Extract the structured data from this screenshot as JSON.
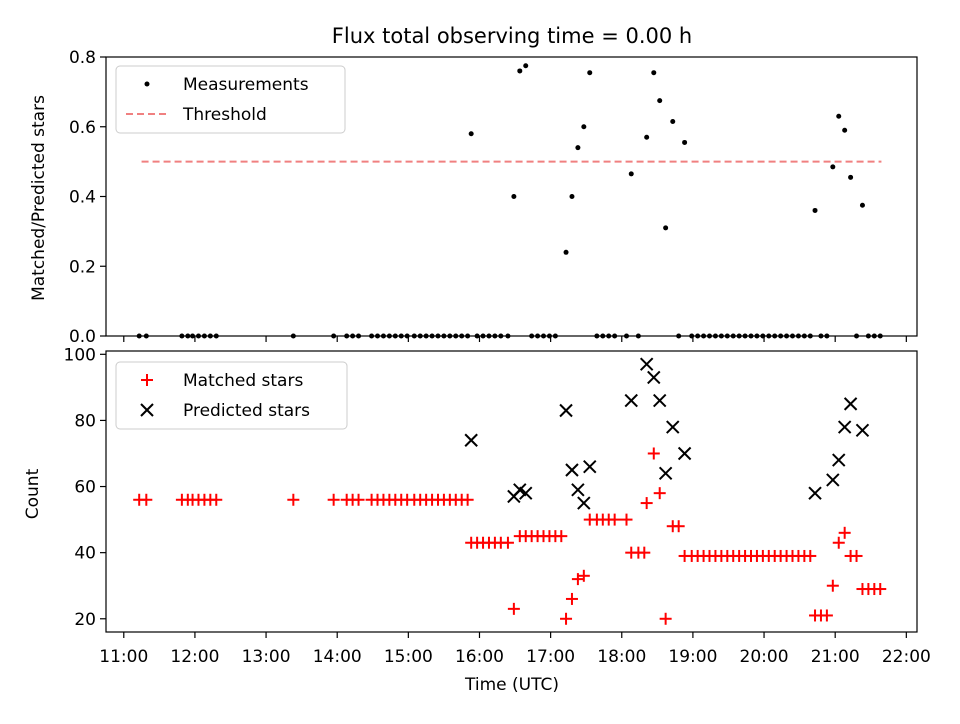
{
  "chart_data": [
    {
      "type": "scatter",
      "title": "Flux total observing time = 0.00 h",
      "xlabel": "",
      "ylabel": "Matched/Predicted stars",
      "ylim": [
        0,
        0.8
      ],
      "yticks": [
        "0.0",
        "0.2",
        "0.4",
        "0.6",
        "0.8"
      ],
      "legend": {
        "position": "upper-left",
        "entries": [
          "Measurements",
          "Threshold"
        ]
      },
      "threshold": {
        "name": "Threshold",
        "value": 0.5,
        "x_start": "11:15",
        "x_end": "21:39",
        "color": "#f08080",
        "style": "dashed"
      },
      "series": [
        {
          "name": "Measurements",
          "marker": "dot",
          "color": "#000000",
          "points": [
            [
              "11:13",
              0.0
            ],
            [
              "11:19",
              0.0
            ],
            [
              "11:49",
              0.0
            ],
            [
              "11:54",
              0.0
            ],
            [
              "11:58",
              0.0
            ],
            [
              "12:03",
              0.0
            ],
            [
              "12:08",
              0.0
            ],
            [
              "12:13",
              0.0
            ],
            [
              "12:18",
              0.0
            ],
            [
              "13:23",
              0.0
            ],
            [
              "13:57",
              0.0
            ],
            [
              "14:08",
              0.0
            ],
            [
              "14:13",
              0.0
            ],
            [
              "14:18",
              0.0
            ],
            [
              "14:29",
              0.0
            ],
            [
              "14:34",
              0.0
            ],
            [
              "14:39",
              0.0
            ],
            [
              "14:44",
              0.0
            ],
            [
              "14:49",
              0.0
            ],
            [
              "14:54",
              0.0
            ],
            [
              "14:59",
              0.0
            ],
            [
              "15:05",
              0.0
            ],
            [
              "15:10",
              0.0
            ],
            [
              "15:15",
              0.0
            ],
            [
              "15:20",
              0.0
            ],
            [
              "15:25",
              0.0
            ],
            [
              "15:30",
              0.0
            ],
            [
              "15:35",
              0.0
            ],
            [
              "15:40",
              0.0
            ],
            [
              "15:45",
              0.0
            ],
            [
              "15:50",
              0.0
            ],
            [
              "15:53",
              0.58
            ],
            [
              "15:58",
              0.0
            ],
            [
              "16:03",
              0.0
            ],
            [
              "16:08",
              0.0
            ],
            [
              "16:13",
              0.0
            ],
            [
              "16:18",
              0.0
            ],
            [
              "16:24",
              0.0
            ],
            [
              "16:29",
              0.4
            ],
            [
              "16:34",
              0.76
            ],
            [
              "16:39",
              0.775
            ],
            [
              "16:44",
              0.0
            ],
            [
              "16:49",
              0.0
            ],
            [
              "16:54",
              0.0
            ],
            [
              "16:59",
              0.0
            ],
            [
              "17:04",
              0.0
            ],
            [
              "17:13",
              0.24
            ],
            [
              "17:18",
              0.4
            ],
            [
              "17:23",
              0.54
            ],
            [
              "17:28",
              0.6
            ],
            [
              "17:33",
              0.755
            ],
            [
              "17:39",
              0.0
            ],
            [
              "17:44",
              0.0
            ],
            [
              "17:49",
              0.0
            ],
            [
              "17:54",
              0.0
            ],
            [
              "18:04",
              0.0
            ],
            [
              "18:08",
              0.465
            ],
            [
              "18:14",
              0.0
            ],
            [
              "18:21",
              0.57
            ],
            [
              "18:27",
              0.755
            ],
            [
              "18:32",
              0.675
            ],
            [
              "18:37",
              0.31
            ],
            [
              "18:43",
              0.615
            ],
            [
              "18:48",
              0.0
            ],
            [
              "18:53",
              0.555
            ],
            [
              "18:59",
              0.0
            ],
            [
              "19:04",
              0.0
            ],
            [
              "19:09",
              0.0
            ],
            [
              "19:14",
              0.0
            ],
            [
              "19:19",
              0.0
            ],
            [
              "19:24",
              0.0
            ],
            [
              "19:29",
              0.0
            ],
            [
              "19:34",
              0.0
            ],
            [
              "19:39",
              0.0
            ],
            [
              "19:44",
              0.0
            ],
            [
              "19:49",
              0.0
            ],
            [
              "19:54",
              0.0
            ],
            [
              "19:59",
              0.0
            ],
            [
              "20:04",
              0.0
            ],
            [
              "20:09",
              0.0
            ],
            [
              "20:14",
              0.0
            ],
            [
              "20:19",
              0.0
            ],
            [
              "20:24",
              0.0
            ],
            [
              "20:29",
              0.0
            ],
            [
              "20:34",
              0.0
            ],
            [
              "20:39",
              0.0
            ],
            [
              "20:43",
              0.36
            ],
            [
              "20:48",
              0.0
            ],
            [
              "20:53",
              0.0
            ],
            [
              "20:58",
              0.485
            ],
            [
              "21:03",
              0.63
            ],
            [
              "21:08",
              0.59
            ],
            [
              "21:13",
              0.455
            ],
            [
              "21:18",
              0.0
            ],
            [
              "21:23",
              0.375
            ],
            [
              "21:28",
              0.0
            ],
            [
              "21:33",
              0.0
            ],
            [
              "21:38",
              0.0
            ]
          ]
        }
      ]
    },
    {
      "type": "scatter",
      "title": "",
      "xlabel": "Time (UTC)",
      "ylabel": "Count",
      "ylim": [
        16,
        101
      ],
      "yticks": [
        "20",
        "40",
        "60",
        "80",
        "100"
      ],
      "xlim": [
        "10:45",
        "22:09"
      ],
      "xticks": [
        "11:00",
        "12:00",
        "13:00",
        "14:00",
        "15:00",
        "16:00",
        "17:00",
        "18:00",
        "19:00",
        "20:00",
        "21:00",
        "22:00"
      ],
      "legend": {
        "position": "upper-left",
        "entries": [
          "Matched stars",
          "Predicted stars"
        ]
      },
      "series": [
        {
          "name": "Matched stars",
          "marker": "plus",
          "color": "#ff0000",
          "points": [
            [
              "11:13",
              56
            ],
            [
              "11:19",
              56
            ],
            [
              "11:49",
              56
            ],
            [
              "11:54",
              56
            ],
            [
              "11:58",
              56
            ],
            [
              "12:03",
              56
            ],
            [
              "12:08",
              56
            ],
            [
              "12:13",
              56
            ],
            [
              "12:18",
              56
            ],
            [
              "13:23",
              56
            ],
            [
              "13:57",
              56
            ],
            [
              "14:08",
              56
            ],
            [
              "14:13",
              56
            ],
            [
              "14:18",
              56
            ],
            [
              "14:29",
              56
            ],
            [
              "14:34",
              56
            ],
            [
              "14:39",
              56
            ],
            [
              "14:44",
              56
            ],
            [
              "14:49",
              56
            ],
            [
              "14:54",
              56
            ],
            [
              "14:59",
              56
            ],
            [
              "15:05",
              56
            ],
            [
              "15:10",
              56
            ],
            [
              "15:15",
              56
            ],
            [
              "15:20",
              56
            ],
            [
              "15:25",
              56
            ],
            [
              "15:30",
              56
            ],
            [
              "15:35",
              56
            ],
            [
              "15:40",
              56
            ],
            [
              "15:45",
              56
            ],
            [
              "15:50",
              56
            ],
            [
              "15:53",
              43
            ],
            [
              "15:58",
              43
            ],
            [
              "16:03",
              43
            ],
            [
              "16:08",
              43
            ],
            [
              "16:13",
              43
            ],
            [
              "16:18",
              43
            ],
            [
              "16:24",
              43
            ],
            [
              "16:29",
              23
            ],
            [
              "16:34",
              45
            ],
            [
              "16:39",
              45
            ],
            [
              "16:44",
              45
            ],
            [
              "16:49",
              45
            ],
            [
              "16:54",
              45
            ],
            [
              "16:59",
              45
            ],
            [
              "17:04",
              45
            ],
            [
              "17:09",
              45
            ],
            [
              "17:13",
              20
            ],
            [
              "17:18",
              26
            ],
            [
              "17:23",
              32
            ],
            [
              "17:28",
              33
            ],
            [
              "17:33",
              50
            ],
            [
              "17:39",
              50
            ],
            [
              "17:44",
              50
            ],
            [
              "17:49",
              50
            ],
            [
              "17:54",
              50
            ],
            [
              "18:04",
              50
            ],
            [
              "18:08",
              40
            ],
            [
              "18:14",
              40
            ],
            [
              "18:19",
              40
            ],
            [
              "18:21",
              55
            ],
            [
              "18:27",
              70
            ],
            [
              "18:32",
              58
            ],
            [
              "18:37",
              20
            ],
            [
              "18:43",
              48
            ],
            [
              "18:48",
              48
            ],
            [
              "18:53",
              39
            ],
            [
              "18:59",
              39
            ],
            [
              "19:04",
              39
            ],
            [
              "19:09",
              39
            ],
            [
              "19:14",
              39
            ],
            [
              "19:19",
              39
            ],
            [
              "19:24",
              39
            ],
            [
              "19:29",
              39
            ],
            [
              "19:34",
              39
            ],
            [
              "19:39",
              39
            ],
            [
              "19:44",
              39
            ],
            [
              "19:49",
              39
            ],
            [
              "19:54",
              39
            ],
            [
              "19:59",
              39
            ],
            [
              "20:04",
              39
            ],
            [
              "20:09",
              39
            ],
            [
              "20:14",
              39
            ],
            [
              "20:19",
              39
            ],
            [
              "20:24",
              39
            ],
            [
              "20:29",
              39
            ],
            [
              "20:34",
              39
            ],
            [
              "20:39",
              39
            ],
            [
              "20:43",
              21
            ],
            [
              "20:48",
              21
            ],
            [
              "20:53",
              21
            ],
            [
              "20:58",
              30
            ],
            [
              "21:03",
              43
            ],
            [
              "21:08",
              46
            ],
            [
              "21:13",
              39
            ],
            [
              "21:18",
              39
            ],
            [
              "21:23",
              29
            ],
            [
              "21:28",
              29
            ],
            [
              "21:33",
              29
            ],
            [
              "21:38",
              29
            ]
          ]
        },
        {
          "name": "Predicted stars",
          "marker": "x",
          "color": "#000000",
          "points": [
            [
              "15:53",
              74
            ],
            [
              "16:29",
              57
            ],
            [
              "16:34",
              59
            ],
            [
              "16:39",
              58
            ],
            [
              "17:13",
              83
            ],
            [
              "17:18",
              65
            ],
            [
              "17:23",
              59
            ],
            [
              "17:28",
              55
            ],
            [
              "17:33",
              66
            ],
            [
              "18:08",
              86
            ],
            [
              "18:21",
              97
            ],
            [
              "18:27",
              93
            ],
            [
              "18:32",
              86
            ],
            [
              "18:37",
              64
            ],
            [
              "18:43",
              78
            ],
            [
              "18:53",
              70
            ],
            [
              "20:43",
              58
            ],
            [
              "20:58",
              62
            ],
            [
              "21:03",
              68
            ],
            [
              "21:08",
              78
            ],
            [
              "21:13",
              85
            ],
            [
              "21:23",
              77
            ]
          ]
        }
      ]
    }
  ]
}
